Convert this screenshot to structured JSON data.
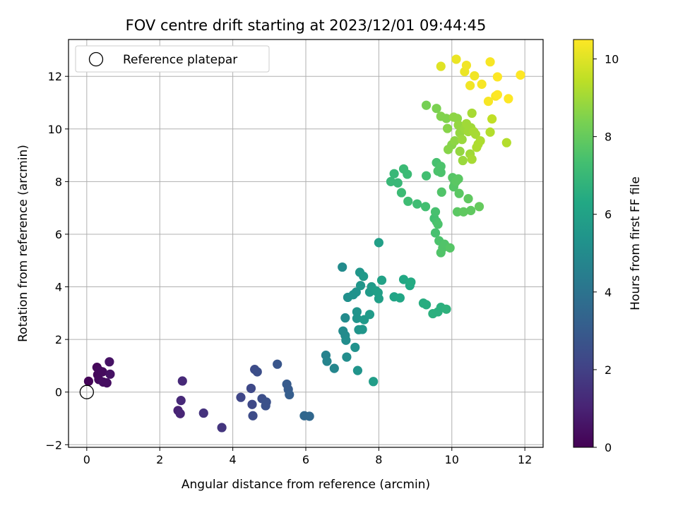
{
  "chart_data": {
    "type": "scatter",
    "title": "FOV centre drift starting at 2023/12/01 09:44:45",
    "xlabel": "Angular distance from reference (arcmin)",
    "ylabel": "Rotation from reference (arcmin)",
    "xlim": [
      -0.5,
      12.5
    ],
    "ylim": [
      -2.1,
      13.4
    ],
    "xticks": [
      0,
      2,
      4,
      6,
      8,
      10,
      12
    ],
    "yticks": [
      -2,
      0,
      2,
      4,
      6,
      8,
      10,
      12
    ],
    "grid": true,
    "legend": {
      "placement": "top-left",
      "entries": [
        {
          "label": "Reference platepar",
          "marker": "open-circle"
        }
      ]
    },
    "reference_point": {
      "x": 0,
      "y": 0
    },
    "colorbar": {
      "label": "Hours from first FF file",
      "range": [
        0,
        10.5
      ],
      "ticks": [
        0,
        2,
        4,
        6,
        8,
        10
      ],
      "colormap": "viridis"
    },
    "points": [
      {
        "x": 0.05,
        "y": 0.41,
        "c": 0.1
      },
      {
        "x": 0.28,
        "y": 0.94,
        "c": 0.2
      },
      {
        "x": 0.3,
        "y": 0.66,
        "c": 0.2
      },
      {
        "x": 0.35,
        "y": 0.81,
        "c": 0.3
      },
      {
        "x": 0.33,
        "y": 0.48,
        "c": 0.3
      },
      {
        "x": 0.43,
        "y": 0.77,
        "c": 0.3
      },
      {
        "x": 0.45,
        "y": 0.38,
        "c": 0.4
      },
      {
        "x": 0.55,
        "y": 0.35,
        "c": 0.4
      },
      {
        "x": 0.62,
        "y": 1.15,
        "c": 0.5
      },
      {
        "x": 0.64,
        "y": 0.68,
        "c": 0.5
      },
      {
        "x": 2.5,
        "y": -0.7,
        "c": 1.0
      },
      {
        "x": 2.56,
        "y": -0.82,
        "c": 1.1
      },
      {
        "x": 2.58,
        "y": -0.32,
        "c": 1.2
      },
      {
        "x": 2.62,
        "y": 0.42,
        "c": 1.2
      },
      {
        "x": 3.2,
        "y": -0.8,
        "c": 1.5
      },
      {
        "x": 3.7,
        "y": -1.35,
        "c": 1.6
      },
      {
        "x": 4.22,
        "y": -0.2,
        "c": 2.2
      },
      {
        "x": 4.5,
        "y": 0.14,
        "c": 2.3
      },
      {
        "x": 4.53,
        "y": -0.47,
        "c": 2.3
      },
      {
        "x": 4.55,
        "y": -0.9,
        "c": 2.4
      },
      {
        "x": 4.6,
        "y": 0.86,
        "c": 2.4
      },
      {
        "x": 4.67,
        "y": 0.77,
        "c": 2.5
      },
      {
        "x": 4.8,
        "y": -0.25,
        "c": 2.5
      },
      {
        "x": 4.9,
        "y": -0.52,
        "c": 2.6
      },
      {
        "x": 4.92,
        "y": -0.38,
        "c": 2.6
      },
      {
        "x": 5.22,
        "y": 1.06,
        "c": 2.8
      },
      {
        "x": 5.48,
        "y": 0.3,
        "c": 3.0
      },
      {
        "x": 5.52,
        "y": 0.1,
        "c": 3.0
      },
      {
        "x": 5.55,
        "y": -0.1,
        "c": 3.1
      },
      {
        "x": 5.96,
        "y": -0.9,
        "c": 3.5
      },
      {
        "x": 6.1,
        "y": -0.92,
        "c": 3.5
      },
      {
        "x": 6.55,
        "y": 1.4,
        "c": 4.6
      },
      {
        "x": 6.58,
        "y": 1.17,
        "c": 4.7
      },
      {
        "x": 6.78,
        "y": 0.9,
        "c": 4.8
      },
      {
        "x": 7.0,
        "y": 4.75,
        "c": 5.0
      },
      {
        "x": 7.02,
        "y": 2.32,
        "c": 5.0
      },
      {
        "x": 7.08,
        "y": 2.82,
        "c": 5.0
      },
      {
        "x": 7.08,
        "y": 2.15,
        "c": 5.0
      },
      {
        "x": 7.1,
        "y": 1.97,
        "c": 5.1
      },
      {
        "x": 7.12,
        "y": 1.33,
        "c": 5.1
      },
      {
        "x": 7.15,
        "y": 3.6,
        "c": 5.2
      },
      {
        "x": 7.3,
        "y": 3.7,
        "c": 5.3
      },
      {
        "x": 7.35,
        "y": 1.7,
        "c": 5.3
      },
      {
        "x": 7.38,
        "y": 3.8,
        "c": 5.3
      },
      {
        "x": 7.4,
        "y": 3.05,
        "c": 5.4
      },
      {
        "x": 7.4,
        "y": 2.8,
        "c": 5.4
      },
      {
        "x": 7.42,
        "y": 0.82,
        "c": 5.4
      },
      {
        "x": 7.45,
        "y": 2.37,
        "c": 5.4
      },
      {
        "x": 7.48,
        "y": 4.55,
        "c": 5.5
      },
      {
        "x": 7.5,
        "y": 4.05,
        "c": 5.5
      },
      {
        "x": 7.55,
        "y": 2.38,
        "c": 5.5
      },
      {
        "x": 7.58,
        "y": 4.4,
        "c": 5.6
      },
      {
        "x": 7.6,
        "y": 2.75,
        "c": 5.6
      },
      {
        "x": 7.75,
        "y": 2.95,
        "c": 5.7
      },
      {
        "x": 7.75,
        "y": 3.8,
        "c": 5.7
      },
      {
        "x": 7.8,
        "y": 4.0,
        "c": 5.7
      },
      {
        "x": 7.85,
        "y": 0.4,
        "c": 5.8
      },
      {
        "x": 7.92,
        "y": 3.85,
        "c": 5.8
      },
      {
        "x": 7.98,
        "y": 3.78,
        "c": 5.9
      },
      {
        "x": 8.0,
        "y": 3.55,
        "c": 5.9
      },
      {
        "x": 8.0,
        "y": 5.68,
        "c": 5.9
      },
      {
        "x": 8.08,
        "y": 4.25,
        "c": 6.0
      },
      {
        "x": 8.42,
        "y": 3.62,
        "c": 6.1
      },
      {
        "x": 8.58,
        "y": 3.58,
        "c": 6.2
      },
      {
        "x": 8.68,
        "y": 4.28,
        "c": 6.3
      },
      {
        "x": 8.85,
        "y": 4.05,
        "c": 6.3
      },
      {
        "x": 8.88,
        "y": 4.18,
        "c": 6.4
      },
      {
        "x": 9.22,
        "y": 3.38,
        "c": 6.5
      },
      {
        "x": 9.3,
        "y": 3.32,
        "c": 6.5
      },
      {
        "x": 9.48,
        "y": 2.98,
        "c": 6.6
      },
      {
        "x": 9.62,
        "y": 3.05,
        "c": 6.6
      },
      {
        "x": 9.7,
        "y": 3.22,
        "c": 6.6
      },
      {
        "x": 9.85,
        "y": 3.15,
        "c": 6.7
      },
      {
        "x": 8.33,
        "y": 8.0,
        "c": 7.0
      },
      {
        "x": 8.42,
        "y": 8.3,
        "c": 7.0
      },
      {
        "x": 8.52,
        "y": 7.95,
        "c": 7.0
      },
      {
        "x": 8.62,
        "y": 7.58,
        "c": 7.1
      },
      {
        "x": 8.68,
        "y": 8.48,
        "c": 7.1
      },
      {
        "x": 8.78,
        "y": 8.28,
        "c": 7.1
      },
      {
        "x": 8.8,
        "y": 7.25,
        "c": 7.2
      },
      {
        "x": 9.05,
        "y": 7.15,
        "c": 7.2
      },
      {
        "x": 9.28,
        "y": 7.05,
        "c": 7.3
      },
      {
        "x": 9.3,
        "y": 8.22,
        "c": 7.3
      },
      {
        "x": 9.52,
        "y": 6.6,
        "c": 7.3
      },
      {
        "x": 9.55,
        "y": 6.05,
        "c": 7.4
      },
      {
        "x": 9.55,
        "y": 6.85,
        "c": 7.4
      },
      {
        "x": 9.58,
        "y": 6.48,
        "c": 7.4
      },
      {
        "x": 9.58,
        "y": 8.72,
        "c": 7.4
      },
      {
        "x": 9.62,
        "y": 6.38,
        "c": 7.5
      },
      {
        "x": 9.62,
        "y": 8.4,
        "c": 7.5
      },
      {
        "x": 9.65,
        "y": 5.75,
        "c": 7.5
      },
      {
        "x": 9.7,
        "y": 8.58,
        "c": 7.5
      },
      {
        "x": 9.7,
        "y": 8.35,
        "c": 7.5
      },
      {
        "x": 9.7,
        "y": 5.3,
        "c": 7.6
      },
      {
        "x": 9.72,
        "y": 7.6,
        "c": 7.6
      },
      {
        "x": 9.75,
        "y": 5.48,
        "c": 7.6
      },
      {
        "x": 9.8,
        "y": 5.62,
        "c": 7.6
      },
      {
        "x": 9.95,
        "y": 5.48,
        "c": 7.7
      },
      {
        "x": 10.02,
        "y": 8.15,
        "c": 7.7
      },
      {
        "x": 10.05,
        "y": 7.8,
        "c": 7.7
      },
      {
        "x": 10.08,
        "y": 7.95,
        "c": 7.7
      },
      {
        "x": 10.12,
        "y": 8.02,
        "c": 7.8
      },
      {
        "x": 10.15,
        "y": 6.85,
        "c": 7.8
      },
      {
        "x": 10.18,
        "y": 8.1,
        "c": 7.8
      },
      {
        "x": 10.2,
        "y": 7.55,
        "c": 7.8
      },
      {
        "x": 10.32,
        "y": 6.85,
        "c": 7.9
      },
      {
        "x": 10.45,
        "y": 7.35,
        "c": 7.9
      },
      {
        "x": 10.52,
        "y": 6.9,
        "c": 7.9
      },
      {
        "x": 10.75,
        "y": 7.05,
        "c": 8.0
      },
      {
        "x": 9.3,
        "y": 10.9,
        "c": 8.3
      },
      {
        "x": 9.58,
        "y": 10.78,
        "c": 8.4
      },
      {
        "x": 9.7,
        "y": 10.48,
        "c": 8.5
      },
      {
        "x": 9.85,
        "y": 10.4,
        "c": 8.5
      },
      {
        "x": 9.88,
        "y": 10.02,
        "c": 8.6
      },
      {
        "x": 9.9,
        "y": 9.22,
        "c": 8.6
      },
      {
        "x": 10.0,
        "y": 9.4,
        "c": 8.6
      },
      {
        "x": 10.05,
        "y": 10.45,
        "c": 8.7
      },
      {
        "x": 10.08,
        "y": 9.55,
        "c": 8.7
      },
      {
        "x": 10.15,
        "y": 10.4,
        "c": 8.7
      },
      {
        "x": 10.18,
        "y": 10.15,
        "c": 8.8
      },
      {
        "x": 10.22,
        "y": 9.85,
        "c": 8.8
      },
      {
        "x": 10.22,
        "y": 9.15,
        "c": 8.8
      },
      {
        "x": 10.28,
        "y": 9.6,
        "c": 8.9
      },
      {
        "x": 10.3,
        "y": 8.8,
        "c": 8.9
      },
      {
        "x": 10.35,
        "y": 10.0,
        "c": 8.9
      },
      {
        "x": 10.38,
        "y": 9.98,
        "c": 8.9
      },
      {
        "x": 10.4,
        "y": 10.2,
        "c": 9.0
      },
      {
        "x": 10.45,
        "y": 9.9,
        "c": 9.0
      },
      {
        "x": 10.5,
        "y": 9.05,
        "c": 9.0
      },
      {
        "x": 10.52,
        "y": 10.05,
        "c": 9.0
      },
      {
        "x": 10.55,
        "y": 10.6,
        "c": 9.1
      },
      {
        "x": 10.55,
        "y": 8.85,
        "c": 9.1
      },
      {
        "x": 10.6,
        "y": 9.9,
        "c": 9.1
      },
      {
        "x": 10.65,
        "y": 9.8,
        "c": 9.1
      },
      {
        "x": 10.68,
        "y": 9.3,
        "c": 9.2
      },
      {
        "x": 10.72,
        "y": 9.42,
        "c": 9.2
      },
      {
        "x": 10.78,
        "y": 9.55,
        "c": 9.2
      },
      {
        "x": 11.05,
        "y": 9.88,
        "c": 9.3
      },
      {
        "x": 11.5,
        "y": 9.48,
        "c": 9.3
      },
      {
        "x": 11.1,
        "y": 10.38,
        "c": 9.5
      },
      {
        "x": 9.7,
        "y": 12.38,
        "c": 10.0
      },
      {
        "x": 10.12,
        "y": 12.65,
        "c": 10.2
      },
      {
        "x": 10.35,
        "y": 12.18,
        "c": 10.2
      },
      {
        "x": 10.4,
        "y": 12.42,
        "c": 10.3
      },
      {
        "x": 10.5,
        "y": 11.65,
        "c": 10.3
      },
      {
        "x": 10.62,
        "y": 12.02,
        "c": 10.3
      },
      {
        "x": 10.82,
        "y": 11.7,
        "c": 10.4
      },
      {
        "x": 11.0,
        "y": 11.05,
        "c": 10.4
      },
      {
        "x": 11.05,
        "y": 12.55,
        "c": 10.4
      },
      {
        "x": 11.2,
        "y": 11.25,
        "c": 10.4
      },
      {
        "x": 11.25,
        "y": 11.3,
        "c": 10.5
      },
      {
        "x": 11.25,
        "y": 11.98,
        "c": 10.5
      },
      {
        "x": 11.55,
        "y": 11.15,
        "c": 10.5
      },
      {
        "x": 11.88,
        "y": 12.05,
        "c": 10.5
      }
    ]
  }
}
